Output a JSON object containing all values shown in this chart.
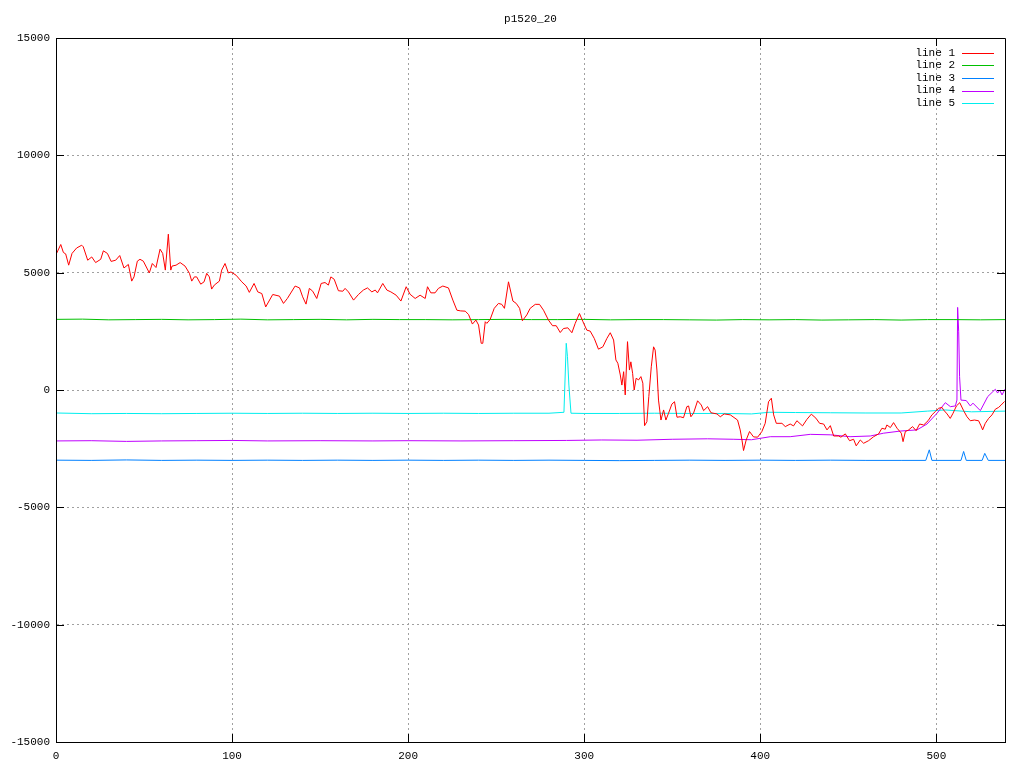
{
  "chart_data": {
    "type": "line",
    "title": "p1520_20",
    "xlim": [
      0,
      539
    ],
    "xticks": [
      0,
      100,
      200,
      300,
      400,
      500
    ],
    "ylim": [
      -15000,
      15000
    ],
    "yticks": [
      -15000,
      -10000,
      -5000,
      0,
      5000,
      10000,
      15000
    ],
    "grid": true,
    "legend": "top right",
    "series": [
      {
        "name": "line 1",
        "color": "#ff0000",
        "x": [
          0,
          2.7,
          4.2,
          5.5,
          7.2,
          9.1,
          11.7,
          14.6,
          15.5,
          18,
          20.3,
          22.5,
          25.4,
          26.9,
          29.2,
          31.3,
          33.9,
          36.2,
          38.6,
          41.1,
          43,
          44.3,
          46.2,
          47.7,
          49.6,
          53,
          54.7,
          56.8,
          59.1,
          60.6,
          62.1,
          63.8,
          65.2,
          65.9,
          68.2,
          70.5,
          73.3,
          75.8,
          77.1,
          78.6,
          79.9,
          82.2,
          84.1,
          85.6,
          87.1,
          88.4,
          89.9,
          92.8,
          94.1,
          96,
          97.9,
          99.4,
          102.3,
          105.5,
          108,
          109.8,
          112.5,
          114.6,
          116.9,
          119.1,
          123.1,
          126.9,
          129.2,
          131.4,
          135.8,
          138.3,
          140.1,
          142,
          143.9,
          145.8,
          148.1,
          150.6,
          152.8,
          154.7,
          156.1,
          158,
          160.4,
          162.9,
          164.2,
          166.1,
          169,
          171.8,
          174.6,
          176.9,
          179.4,
          181.3,
          182.6,
          185.6,
          187.9,
          190.2,
          193.2,
          195.9,
          198.9,
          201.1,
          204,
          206.8,
          209.7,
          211,
          212.9,
          215.3,
          217.2,
          219.7,
          222.9,
          225.4,
          227.7,
          229.9,
          232.4,
          234.3,
          236.5,
          238.5,
          240,
          241.5,
          242.4,
          243.8,
          244.7,
          246.6,
          248.9,
          251.3,
          253.2,
          254.7,
          257,
          259.5,
          261.4,
          263.3,
          264.9,
          267.4,
          269.3,
          272.2,
          274.6,
          276.9,
          279.7,
          282,
          284.1,
          286.4,
          288.2,
          290.7,
          293,
          294.9,
          297.3,
          299.3,
          301.5,
          303.4,
          305.7,
          308.1,
          310.6,
          312.9,
          314.8,
          316.7,
          318,
          319.1,
          320.5,
          321.4,
          322.4,
          323.3,
          324.6,
          325.7,
          326.5,
          327.5,
          328.4,
          329.5,
          330.9,
          332.2,
          333.3,
          334.3,
          335.6,
          336.7,
          338.1,
          339.4,
          340.3,
          341.3,
          342.2,
          343.6,
          345.1,
          346.4,
          347.9,
          349.8,
          351.3,
          352.7,
          354.5,
          356.4,
          358.3,
          359.3,
          360.6,
          362.1,
          364.4,
          366.5,
          367.8,
          370.1,
          372,
          375.4,
          377.3,
          379.5,
          383,
          387.1,
          388.6,
          389.6,
          390.5,
          392,
          393.9,
          396.2,
          398.5,
          400.9,
          402.8,
          404.7,
          406.3,
          407.6,
          409.1,
          412.3,
          414.2,
          417,
          418.9,
          420.8,
          424,
          426.5,
          429,
          431.6,
          433.7,
          436,
          437.9,
          439.8,
          441.7,
          444.5,
          445.8,
          448.3,
          450.7,
          453,
          454.5,
          456.8,
          458.7,
          461.5,
          464.4,
          467.2,
          469.1,
          471,
          471.9,
          473.9,
          475.7,
          477.7,
          480.1,
          481.1,
          482.4,
          484.3,
          486.5,
          488.5,
          490.5,
          492.8,
          495.3,
          497.5,
          499.4,
          501.3,
          503.2,
          504.1,
          506.1,
          507.9,
          509.5,
          511.4,
          513.3,
          515.5,
          517.4,
          519.3,
          521.6,
          524,
          525.4,
          526.3,
          527.8,
          529.7,
          531.6,
          533.5,
          535.4,
          536.8,
          538.6
        ],
        "values": [
          5770,
          6200,
          5860,
          5800,
          5320,
          5820,
          6050,
          6170,
          6100,
          5530,
          5670,
          5430,
          5570,
          5930,
          5820,
          5480,
          5530,
          5730,
          5200,
          5350,
          4640,
          4820,
          5490,
          5570,
          5490,
          4990,
          5390,
          5220,
          6000,
          5820,
          5110,
          6640,
          5110,
          5280,
          5320,
          5430,
          5280,
          4970,
          4640,
          4820,
          4820,
          4510,
          4610,
          4970,
          4820,
          4300,
          4470,
          4640,
          5110,
          5390,
          4990,
          5030,
          4890,
          4610,
          4430,
          4160,
          4540,
          4180,
          4110,
          3540,
          4070,
          4000,
          3690,
          3900,
          4430,
          4350,
          3970,
          3660,
          4330,
          4210,
          3900,
          4540,
          4580,
          4470,
          4820,
          4720,
          4230,
          4210,
          4330,
          4180,
          3830,
          4070,
          4260,
          4350,
          4180,
          4260,
          4140,
          4540,
          4260,
          4180,
          4040,
          3790,
          4400,
          4080,
          3900,
          4040,
          3900,
          4400,
          4140,
          4140,
          4330,
          4430,
          4350,
          3830,
          3400,
          3370,
          3360,
          3220,
          2810,
          2980,
          2770,
          1990,
          1990,
          2910,
          2840,
          3010,
          3480,
          3690,
          3650,
          3480,
          4610,
          3790,
          3690,
          3480,
          2950,
          3200,
          3480,
          3650,
          3650,
          3400,
          2980,
          2740,
          2740,
          2450,
          2620,
          2650,
          2440,
          2840,
          3260,
          2910,
          2550,
          2510,
          2200,
          1740,
          1840,
          2200,
          2440,
          2130,
          1280,
          1140,
          640,
          210,
          780,
          -210,
          2060,
          850,
          1200,
          710,
          0,
          500,
          430,
          570,
          290,
          -1520,
          -1350,
          -280,
          990,
          1840,
          1700,
          850,
          -430,
          -1280,
          -850,
          -1280,
          -990,
          -600,
          -500,
          -1160,
          -1140,
          -1180,
          -710,
          -680,
          -1140,
          -990,
          -460,
          -640,
          -880,
          -710,
          -970,
          -1020,
          -1140,
          -1020,
          -1060,
          -1280,
          -1700,
          -2130,
          -2580,
          -2130,
          -1770,
          -2000,
          -2010,
          -1770,
          -1420,
          -500,
          -350,
          -1060,
          -1420,
          -1420,
          -1560,
          -1450,
          -1530,
          -1310,
          -1530,
          -1250,
          -1030,
          -1200,
          -1420,
          -1450,
          -1700,
          -1520,
          -1960,
          -1960,
          -2010,
          -1870,
          -2160,
          -2100,
          -2380,
          -2130,
          -2270,
          -2160,
          -1990,
          -1870,
          -1630,
          -1670,
          -1490,
          -1600,
          -1390,
          -1630,
          -1840,
          -2200,
          -1770,
          -1700,
          -1560,
          -1730,
          -1450,
          -1490,
          -1310,
          -1060,
          -920,
          -780,
          -740,
          -850,
          -1020,
          -1210,
          -990,
          -680,
          -540,
          -880,
          -1140,
          -1310,
          -1280,
          -1310,
          -1530,
          -1700,
          -1420,
          -1210,
          -1060,
          -820,
          -740,
          -640,
          -500
        ]
      },
      {
        "name": "line 2",
        "color": "#00c000",
        "x": [
          0,
          15,
          30,
          45,
          60,
          75,
          90,
          105,
          120,
          135,
          150,
          165,
          180,
          195,
          210,
          225,
          240,
          255,
          270,
          285,
          300,
          315,
          330,
          345,
          360,
          375,
          390,
          405,
          420,
          435,
          450,
          465,
          480,
          495,
          510,
          525,
          539
        ],
        "values": [
          3010,
          3020,
          2990,
          3000,
          3010,
          2990,
          3000,
          3020,
          2990,
          3000,
          3010,
          2990,
          3010,
          3000,
          3000,
          2990,
          3000,
          3010,
          3000,
          3000,
          3010,
          2990,
          3000,
          3000,
          2990,
          2980,
          3000,
          2990,
          3000,
          2980,
          2990,
          3000,
          2980,
          3000,
          3000,
          2990,
          3000
        ]
      },
      {
        "name": "line 3",
        "color": "#0080ff",
        "x": [
          0,
          20,
          40,
          60,
          80,
          100,
          120,
          140,
          160,
          180,
          200,
          220,
          240,
          260,
          280,
          300,
          320,
          340,
          360,
          380,
          400,
          420,
          440,
          460,
          480,
          494,
          496,
          497.5,
          514,
          515.5,
          517,
          526,
          527.5,
          529.5,
          539
        ],
        "values": [
          -2990,
          -3000,
          -2980,
          -3000,
          -2990,
          -3000,
          -2990,
          -3000,
          -2990,
          -3000,
          -2990,
          -3000,
          -2990,
          -3000,
          -2990,
          -3000,
          -3010,
          -3000,
          -2990,
          -3000,
          -2990,
          -3000,
          -2990,
          -3000,
          -3000,
          -3000,
          -2550,
          -3000,
          -3000,
          -2620,
          -3000,
          -3000,
          -2700,
          -3000,
          -3000
        ]
      },
      {
        "name": "line 4",
        "color": "#c000ff",
        "x": [
          0,
          20,
          40,
          60,
          80,
          100,
          120,
          150,
          180,
          200,
          230,
          260,
          290,
          310,
          330,
          350,
          370,
          385,
          395,
          405.7,
          417,
          428.4,
          439.8,
          451,
          462.5,
          470.1,
          479.5,
          489,
          494.7,
          500.4,
          505.1,
          508,
          510.8,
          511.7,
          512.1,
          512.7,
          513.2,
          514,
          517,
          519.3,
          520.8,
          525,
          529.2,
          533.5,
          534.8,
          536,
          537.3,
          539
        ],
        "values": [
          -2170,
          -2160,
          -2190,
          -2170,
          -2160,
          -2150,
          -2170,
          -2160,
          -2170,
          -2160,
          -2170,
          -2160,
          -2150,
          -2130,
          -2140,
          -2100,
          -2080,
          -2100,
          -2120,
          -1990,
          -1990,
          -1890,
          -1910,
          -1990,
          -1960,
          -1840,
          -1750,
          -1700,
          -1450,
          -990,
          -540,
          -710,
          -680,
          -430,
          3520,
          2480,
          570,
          -430,
          -450,
          -680,
          -560,
          -880,
          -280,
          30,
          -130,
          0,
          -210,
          30
        ]
      },
      {
        "name": "line 5",
        "color": "#00eeee",
        "x": [
          0,
          20,
          40,
          60,
          80,
          100,
          120,
          140,
          160,
          180,
          200,
          220,
          240,
          260,
          280,
          288.5,
          289.8,
          290.5,
          291.3,
          292.5,
          300,
          320,
          340,
          360,
          380,
          395,
          405,
          420,
          440,
          460,
          480,
          495,
          505,
          520,
          539
        ],
        "values": [
          -980,
          -1010,
          -1000,
          -1010,
          -1000,
          -990,
          -1000,
          -990,
          -1000,
          -990,
          -1000,
          -990,
          -1000,
          -990,
          -990,
          -950,
          1990,
          1420,
          210,
          -990,
          -1000,
          -1000,
          -990,
          -1000,
          -1000,
          -1020,
          -950,
          -960,
          -970,
          -980,
          -980,
          -900,
          -850,
          -930,
          -900
        ]
      }
    ]
  }
}
